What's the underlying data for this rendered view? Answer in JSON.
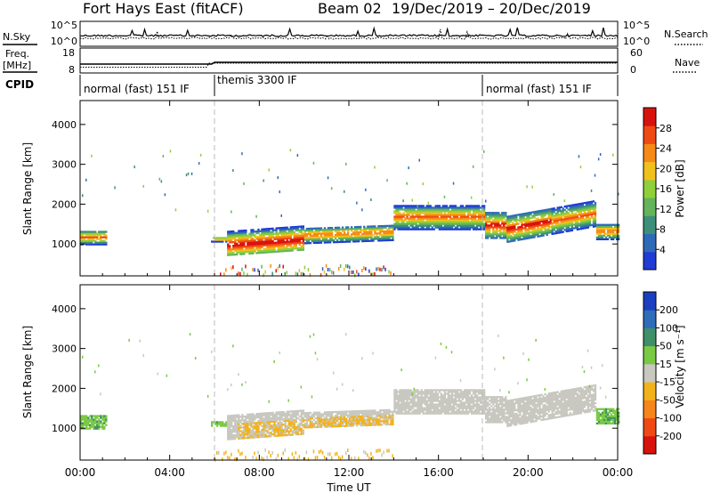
{
  "header": {
    "title": "Fort Hays East (fitACF)",
    "beam": "Beam 02",
    "date_range": "19/Dec/2019 – 20/Dec/2019"
  },
  "top_panels": {
    "nsky_label": "N.Sky",
    "nsky_ticks": [
      "10^5",
      "10^0"
    ],
    "nsearch_label": "N.Search",
    "nsearch_ticks": [
      "10^5",
      "10^0"
    ],
    "freq_label_1": "Freq.",
    "freq_label_2": "[MHz]",
    "freq_ticks": [
      "18",
      "8"
    ],
    "nave_label": "Nave",
    "nave_ticks": [
      "60",
      "0"
    ],
    "cpid_label": "CPID",
    "cpid_modes": [
      {
        "label": "normal (fast) 151 IF",
        "start_h": 0,
        "end_h": 6
      },
      {
        "label": "themis 3300 IF",
        "start_h": 6,
        "end_h": 18
      },
      {
        "label": "normal (fast) 151 IF",
        "start_h": 18,
        "end_h": 24
      }
    ]
  },
  "chart_data": [
    {
      "type": "heatmap",
      "quantity": "Power",
      "ylabel": "Slant Range [km]",
      "xlim": [
        0,
        24
      ],
      "ylim": [
        200,
        4600
      ],
      "yticks": [
        "1000",
        "2000",
        "3000",
        "4000"
      ],
      "colorbar_label": "Power [dB]",
      "colorbar_ticks": [
        "4",
        "8",
        "12",
        "16",
        "20",
        "24",
        "28"
      ],
      "colorbar_range": [
        0,
        32
      ],
      "colors": [
        "#1f3cd6",
        "#2f6ab8",
        "#3e8f7a",
        "#63b45a",
        "#8fcf3a",
        "#f2c01c",
        "#f68a16",
        "#ef4a14",
        "#d8130e"
      ]
    },
    {
      "type": "heatmap",
      "quantity": "Velocity",
      "ylabel": "Slant Range [km]",
      "xlim": [
        0,
        24
      ],
      "ylim": [
        200,
        4600
      ],
      "yticks": [
        "1000",
        "2000",
        "3000",
        "4000"
      ],
      "colorbar_label": "Velocity [m s⁻¹]",
      "colorbar_ticks": [
        "200",
        "100",
        "50",
        "15",
        "-15",
        "-50",
        "-100",
        "-200"
      ],
      "colors": [
        "#1a3fc0",
        "#2e6db8",
        "#3f8f68",
        "#7ac944",
        "#c8c8c0",
        "#f2b21c",
        "#f6861a",
        "#ef4a14",
        "#d8130e"
      ]
    }
  ],
  "x_axis": {
    "ticks": [
      "00:00",
      "04:00",
      "08:00",
      "12:00",
      "16:00",
      "20:00",
      "00:00"
    ],
    "label": "Time UT"
  }
}
